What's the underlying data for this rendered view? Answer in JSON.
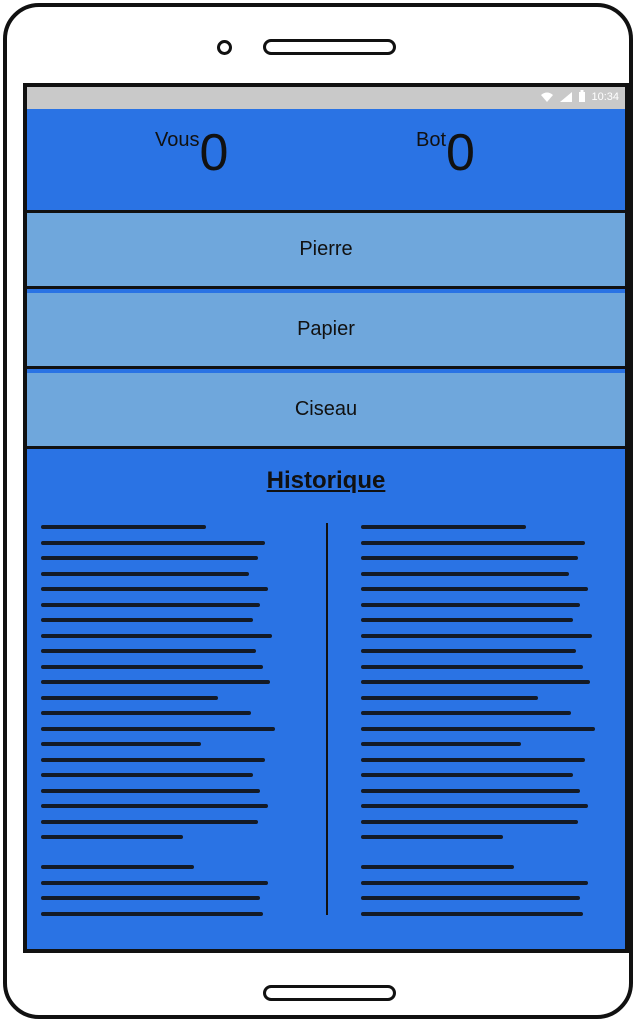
{
  "status_bar": {
    "time": "10:34",
    "icons": [
      "wifi-icon",
      "signal-icon",
      "battery-icon"
    ]
  },
  "scoreboard": {
    "player_label": "Vous",
    "player_score": "0",
    "bot_label": "Bot",
    "bot_score": "0"
  },
  "choices": [
    {
      "label": "Pierre"
    },
    {
      "label": "Papier"
    },
    {
      "label": "Ciseau"
    }
  ],
  "history": {
    "title": "Historique"
  },
  "colors": {
    "primary": "#2a73e4",
    "button": "#6fa7dc",
    "status_bar": "#c9c9c9",
    "text": "#111111"
  }
}
